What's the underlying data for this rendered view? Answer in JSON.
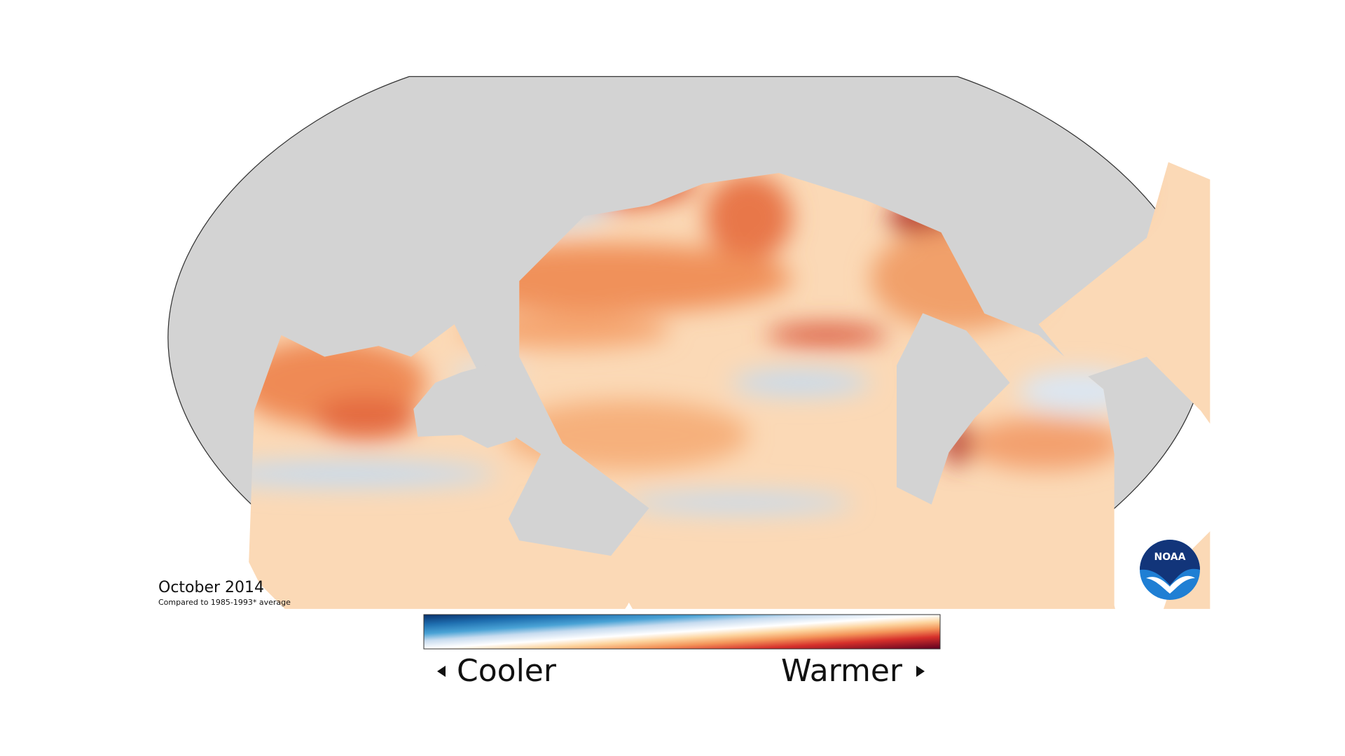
{
  "header": {
    "title": "October 2014",
    "subtitle": "Compared to 1985-1993* average"
  },
  "legend": {
    "low": "Cooler",
    "high": "Warmer"
  },
  "logo": {
    "text": "NOAA"
  }
}
